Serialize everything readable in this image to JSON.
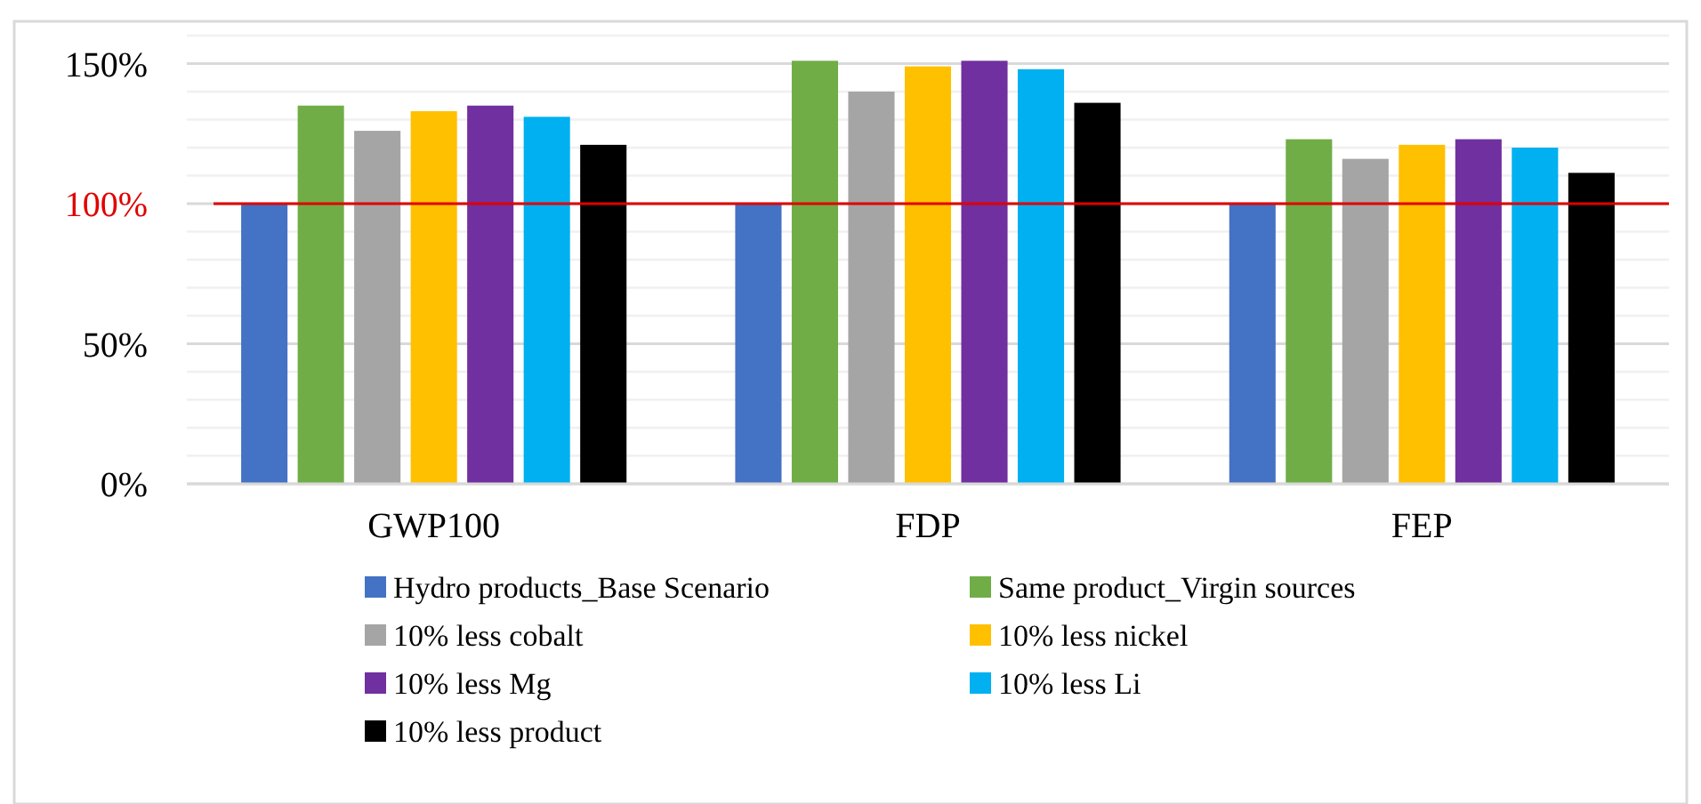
{
  "chart_data": {
    "type": "bar",
    "categories": [
      "GWP100",
      "FDP",
      "FEP"
    ],
    "series": [
      {
        "name": "Hydro products_Base Scenario",
        "color": "#4472c4",
        "values": [
          100,
          100,
          100
        ]
      },
      {
        "name": "Same product_Virgin sources",
        "color": "#70ad47",
        "values": [
          135,
          151,
          123
        ]
      },
      {
        "name": "10% less cobalt",
        "color": "#a5a5a5",
        "values": [
          126,
          140,
          116
        ]
      },
      {
        "name": "10% less nickel",
        "color": "#ffc000",
        "values": [
          133,
          149,
          121
        ]
      },
      {
        "name": "10% less Mg",
        "color": "#7030a0",
        "values": [
          135,
          151,
          123
        ]
      },
      {
        "name": "10% less Li",
        "color": "#00b0f0",
        "values": [
          131,
          148,
          120
        ]
      },
      {
        "name": "10% less product",
        "color": "#000000",
        "values": [
          121,
          136,
          111
        ]
      }
    ],
    "ylim": [
      0,
      160
    ],
    "yticks": [
      {
        "value": 0,
        "label": "0%"
      },
      {
        "value": 10,
        "label": null
      },
      {
        "value": 20,
        "label": null
      },
      {
        "value": 30,
        "label": null
      },
      {
        "value": 40,
        "label": null
      },
      {
        "value": 50,
        "label": "50%"
      },
      {
        "value": 60,
        "label": null
      },
      {
        "value": 70,
        "label": null
      },
      {
        "value": 80,
        "label": null
      },
      {
        "value": 90,
        "label": null
      },
      {
        "value": 100,
        "label": "100%"
      },
      {
        "value": 110,
        "label": null
      },
      {
        "value": 120,
        "label": null
      },
      {
        "value": 130,
        "label": null
      },
      {
        "value": 140,
        "label": null
      },
      {
        "value": 150,
        "label": "150%"
      },
      {
        "value": 160,
        "label": null
      }
    ],
    "grid": true,
    "legend": "bottom",
    "ref_lines": [
      {
        "axis": "y",
        "value": 100,
        "color": "#e00000"
      }
    ]
  }
}
